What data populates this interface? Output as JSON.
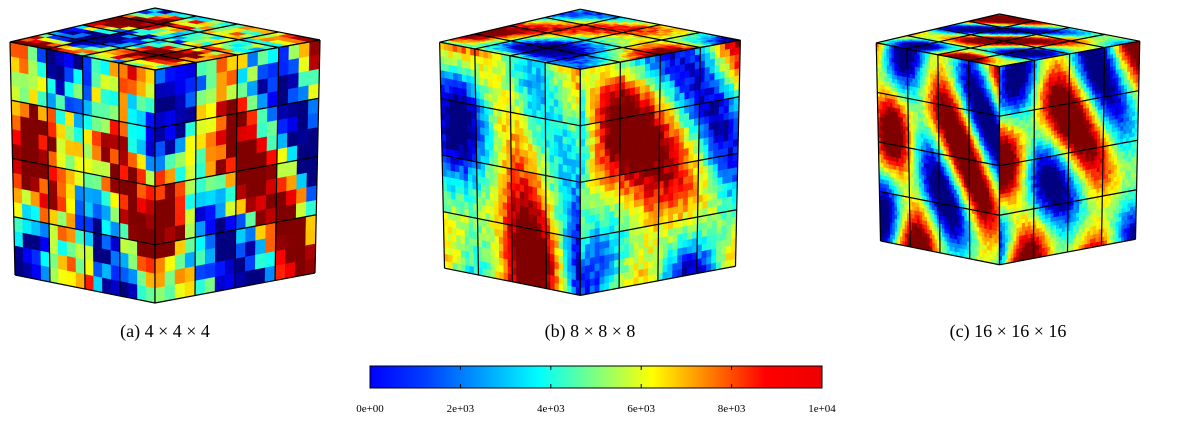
{
  "figure": {
    "captions": [
      "(a) 4 × 4 × 4",
      "(b) 8 × 8 × 8",
      "(c) 16 × 16 × 16"
    ],
    "colorbar": {
      "range": [
        0,
        10000
      ],
      "ticks": [
        {
          "value": 0,
          "label": "0e+00"
        },
        {
          "value": 2000,
          "label": "2e+03"
        },
        {
          "value": 4000,
          "label": "4e+03"
        },
        {
          "value": 6000,
          "label": "6e+03"
        },
        {
          "value": 8000,
          "label": "8e+03"
        },
        {
          "value": 10000,
          "label": "1e+04"
        }
      ]
    }
  }
}
